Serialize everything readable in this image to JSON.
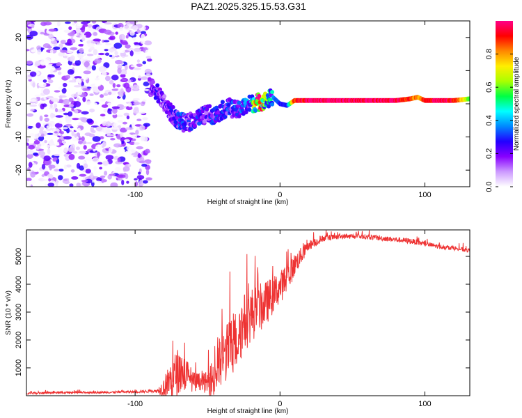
{
  "title": "PAZ1.2025.325.15.53.G31",
  "chart_data": [
    {
      "type": "heatmap",
      "name": "spectrogram",
      "xlabel": "Height of straight line (km)",
      "ylabel": "Frequency (Hz)",
      "xlim": [
        -175,
        131
      ],
      "ylim": [
        -25,
        25
      ],
      "xticks": [
        -100,
        0,
        100
      ],
      "yticks": [
        -20,
        -10,
        0,
        10,
        20
      ],
      "colorbar": {
        "label": "Normalized spectral amplitude",
        "range": [
          0,
          1
        ],
        "ticks": [
          0.0,
          0.2,
          0.4,
          0.6,
          0.8
        ],
        "colors": [
          "#ffffff",
          "#cc99ff",
          "#8800ff",
          "#2200ff",
          "#0088ff",
          "#00ffff",
          "#00ff44",
          "#aaff00",
          "#ffee00",
          "#ff8800",
          "#ff0000",
          "#ff0088"
        ]
      },
      "ridge": {
        "x": [
          -90,
          -85,
          -80,
          -75,
          -70,
          -65,
          -60,
          -55,
          -50,
          -45,
          -40,
          -35,
          -30,
          -25,
          -20,
          -15,
          -10,
          -5,
          0,
          5,
          10,
          20,
          40,
          60,
          80,
          90,
          95,
          100,
          110,
          120,
          131
        ],
        "y": [
          5,
          4,
          0,
          -3,
          -5,
          -6,
          -5,
          -4,
          -3,
          -3.5,
          -2,
          -1,
          -2,
          -1,
          0,
          0.5,
          1,
          2,
          0,
          -0.5,
          1,
          1,
          1,
          1,
          1,
          1.5,
          2,
          1,
          1,
          1,
          1.5
        ],
        "amplitude": [
          0.15,
          0.25,
          0.2,
          0.25,
          0.3,
          0.3,
          0.25,
          0.3,
          0.25,
          0.3,
          0.3,
          0.3,
          0.3,
          0.35,
          0.4,
          1.0,
          0.6,
          0.4,
          0.3,
          0.3,
          0.9,
          1.0,
          1.0,
          1.0,
          1.0,
          0.9,
          0.8,
          0.9,
          1.0,
          0.95,
          0.6
        ]
      },
      "noise_region_x": [
        -175,
        -90
      ]
    },
    {
      "type": "line",
      "name": "snr",
      "xlabel": "Height of straight line (km)",
      "ylabel": "SNR (10 * v/v)",
      "xlim": [
        -175,
        131
      ],
      "ylim": [
        0,
        5950
      ],
      "xticks": [
        -100,
        0,
        100
      ],
      "yticks": [
        1000,
        2000,
        3000,
        4000,
        5000
      ],
      "color": "#ee3333",
      "envelope": {
        "x": [
          -175,
          -150,
          -120,
          -100,
          -85,
          -80,
          -75,
          -70,
          -65,
          -60,
          -55,
          -50,
          -45,
          -40,
          -35,
          -30,
          -25,
          -20,
          -15,
          -10,
          -5,
          0,
          5,
          10,
          20,
          30,
          40,
          50,
          60,
          70,
          80,
          90,
          100,
          110,
          120,
          131
        ],
        "base": [
          90,
          110,
          120,
          140,
          170,
          300,
          600,
          900,
          800,
          500,
          500,
          450,
          700,
          1300,
          1700,
          2000,
          2600,
          2900,
          3100,
          3300,
          3600,
          3900,
          4200,
          4700,
          5400,
          5650,
          5700,
          5720,
          5700,
          5650,
          5600,
          5550,
          5450,
          5350,
          5300,
          5200
        ],
        "spread": [
          80,
          80,
          80,
          90,
          120,
          800,
          1600,
          1900,
          1400,
          800,
          700,
          900,
          2000,
          2400,
          2300,
          2500,
          2400,
          2200,
          2000,
          1800,
          1500,
          1300,
          1200,
          900,
          400,
          250,
          200,
          200,
          200,
          200,
          220,
          220,
          200,
          180,
          180,
          180
        ]
      }
    }
  ]
}
